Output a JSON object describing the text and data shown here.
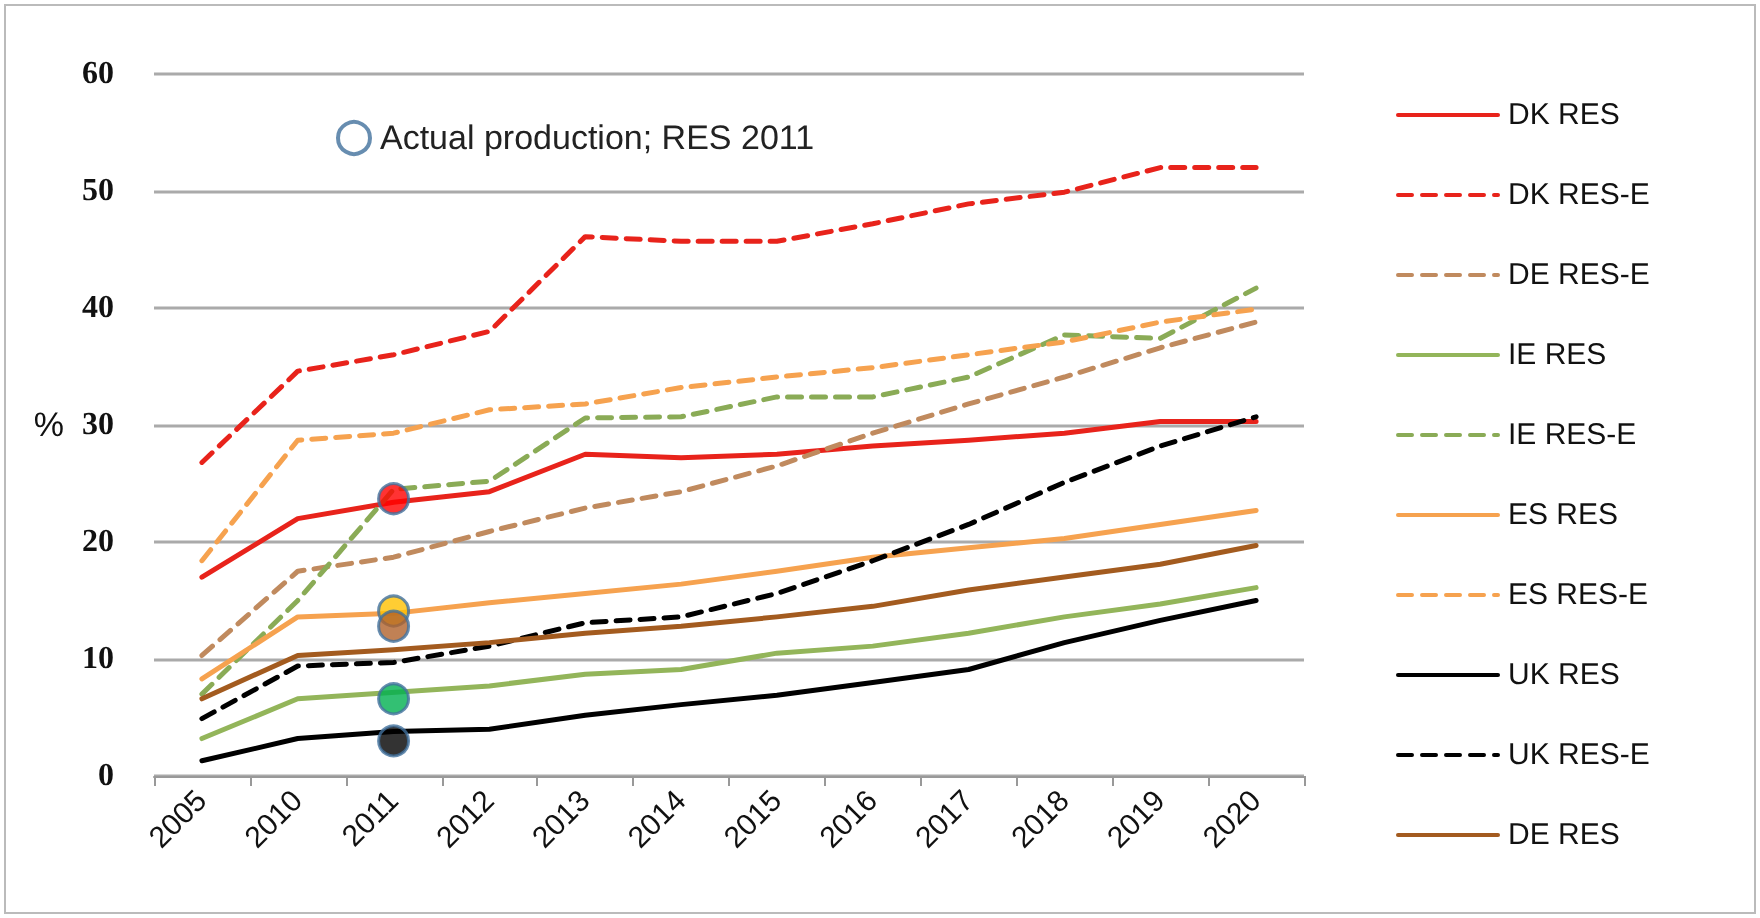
{
  "chart_data": {
    "type": "line",
    "ylabel": "%",
    "categories": [
      "2005",
      "2010",
      "2011",
      "2012",
      "2013",
      "2014",
      "2015",
      "2016",
      "2017",
      "2018",
      "2019",
      "2020"
    ],
    "ylim": [
      0,
      60
    ],
    "yticks": [
      0,
      10,
      20,
      30,
      40,
      50,
      60
    ],
    "grid": "y",
    "legend": "right",
    "marker": "none",
    "series": [
      {
        "name": "DK RES",
        "color": "#e8231b",
        "line_style": "solid",
        "values": [
          17.0,
          22.0,
          23.4,
          24.3,
          27.5,
          27.2,
          27.5,
          28.2,
          28.7,
          29.3,
          30.3,
          30.3
        ]
      },
      {
        "name": "DK RES-E",
        "color": "#e8231b",
        "line_style": "dashed",
        "values": [
          26.8,
          34.6,
          36.0,
          38.0,
          46.1,
          45.7,
          45.7,
          47.2,
          48.9,
          49.9,
          52.0,
          52.0
        ]
      },
      {
        "name": "DE RES-E",
        "color": "#c08a5e",
        "line_style": "dashed",
        "values": [
          10.3,
          17.5,
          18.7,
          20.9,
          22.9,
          24.3,
          26.5,
          29.3,
          31.8,
          34.1,
          36.6,
          38.8
        ]
      },
      {
        "name": "IE RES",
        "color": "#93b55a",
        "line_style": "solid",
        "values": [
          3.2,
          6.6,
          null,
          7.7,
          8.7,
          9.1,
          10.5,
          11.1,
          12.2,
          13.6,
          14.7,
          16.1
        ]
      },
      {
        "name": "IE RES-E",
        "color": "#8aab56",
        "line_style": "dashed",
        "values": [
          7.0,
          15.0,
          24.5,
          25.2,
          30.6,
          30.7,
          32.4,
          32.4,
          34.1,
          37.7,
          37.4,
          41.7
        ]
      },
      {
        "name": "ES RES",
        "color": "#f6a24f",
        "line_style": "solid",
        "values": [
          8.3,
          13.6,
          13.9,
          14.8,
          15.6,
          16.4,
          17.5,
          18.7,
          19.5,
          20.3,
          21.5,
          22.7
        ]
      },
      {
        "name": "ES RES-E",
        "color": "#f6a24f",
        "line_style": "dashed",
        "values": [
          18.4,
          28.7,
          29.3,
          31.3,
          31.8,
          33.2,
          34.1,
          34.9,
          36.0,
          37.1,
          38.8,
          39.9
        ]
      },
      {
        "name": "UK RES",
        "color": "#000000",
        "line_style": "solid",
        "values": [
          1.3,
          3.2,
          3.8,
          4.0,
          5.2,
          6.1,
          6.9,
          8.0,
          9.1,
          11.4,
          13.3,
          15.0
        ]
      },
      {
        "name": "UK RES-E",
        "color": "#000000",
        "line_style": "dashed",
        "values": [
          4.9,
          9.4,
          9.7,
          11.1,
          13.1,
          13.6,
          15.6,
          18.4,
          21.5,
          25.1,
          28.2,
          30.7
        ]
      },
      {
        "name": "DE RES",
        "color": "#a35b1f",
        "line_style": "solid",
        "values": [
          6.6,
          10.3,
          10.8,
          11.4,
          12.2,
          12.8,
          13.6,
          14.5,
          15.9,
          17.0,
          18.1,
          19.7
        ]
      },
      {
        "name": "Actual production; RES 2011",
        "type": "scatter",
        "marker": "circle",
        "color": "#ff0000",
        "values": [
          null,
          null,
          23.7,
          null,
          null,
          null,
          null,
          null,
          null,
          null,
          null,
          null
        ]
      },
      {
        "type": "scatter",
        "marker": "circle",
        "color": "#ffc000",
        "values": [
          null,
          null,
          14.1,
          null,
          null,
          null,
          null,
          null,
          null,
          null,
          null,
          null
        ]
      },
      {
        "type": "scatter",
        "marker": "circle",
        "color": "#b0622a",
        "values": [
          null,
          null,
          12.8,
          null,
          null,
          null,
          null,
          null,
          null,
          null,
          null,
          null
        ]
      },
      {
        "type": "scatter",
        "marker": "circle",
        "color": "#00b050",
        "values": [
          null,
          null,
          6.6,
          null,
          null,
          null,
          null,
          null,
          null,
          null,
          null,
          null
        ]
      },
      {
        "type": "scatter",
        "marker": "circle",
        "color": "#000000",
        "values": [
          null,
          null,
          3.0,
          null,
          null,
          null,
          null,
          null,
          null,
          null,
          null,
          null
        ]
      }
    ]
  }
}
